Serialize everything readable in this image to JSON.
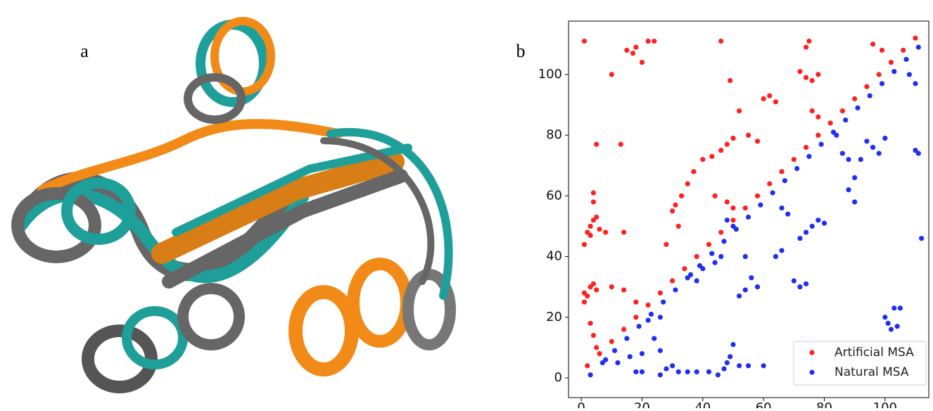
{
  "panel_labels": [
    "a",
    "b"
  ],
  "chart_data": {
    "type": "scatter",
    "xlim": [
      -4.2,
      114.4
    ],
    "ylim": [
      -6.5,
      117.6
    ],
    "xticks": [
      0,
      20,
      40,
      60,
      80,
      100
    ],
    "yticks": [
      0,
      20,
      40,
      60,
      80,
      100
    ],
    "grid": false,
    "legend": "lower right",
    "series": [
      {
        "name": "Artificial MSA",
        "color": "#ff2020",
        "x": [
          1,
          10,
          13,
          5,
          2,
          3,
          1,
          3,
          4,
          5,
          6,
          1,
          2,
          3,
          4,
          5,
          1,
          3,
          4,
          5,
          8,
          14,
          4,
          4,
          10,
          14,
          18,
          15,
          17,
          18,
          20,
          22,
          24,
          30,
          31,
          33,
          35,
          37,
          40,
          43,
          46,
          48,
          50,
          52,
          46,
          49,
          28,
          32,
          44,
          48,
          50,
          60,
          62,
          64,
          55,
          58,
          72,
          74,
          76,
          78,
          74,
          75,
          96,
          99,
          76,
          78,
          2,
          6,
          10,
          14,
          18,
          22,
          26,
          30,
          34,
          38,
          42,
          46,
          50,
          54,
          58,
          62,
          66,
          70,
          74,
          78,
          82,
          86,
          90,
          94,
          98,
          102,
          106,
          110
        ],
        "y": [
          111,
          100,
          77,
          77,
          48,
          47,
          44,
          50,
          52,
          53,
          49,
          28,
          27,
          30,
          31,
          29,
          25,
          18,
          14,
          10,
          48,
          48,
          61,
          58,
          30,
          29,
          25,
          108,
          107,
          109,
          104,
          111,
          111,
          55,
          57,
          60,
          64,
          68,
          72,
          73,
          75,
          77,
          79,
          88,
          111,
          98,
          44,
          50,
          60,
          58,
          56,
          92,
          93,
          91,
          80,
          78,
          101,
          99,
          98,
          100,
          109,
          111,
          110,
          108,
          88,
          86,
          4,
          8,
          12,
          16,
          20,
          24,
          28,
          32,
          36,
          40,
          44,
          48,
          52,
          56,
          60,
          64,
          68,
          72,
          76,
          80,
          84,
          88,
          92,
          96,
          100,
          104,
          108,
          112
        ]
      },
      {
        "name": "Natural MSA",
        "color": "#1f2ef0",
        "x": [
          110,
          111,
          112,
          100,
          101,
          102,
          103,
          105,
          104,
          94,
          96,
          98,
          100,
          92,
          90,
          88,
          90,
          76,
          78,
          74,
          72,
          80,
          70,
          72,
          74,
          58,
          56,
          54,
          52,
          54,
          50,
          48,
          30,
          28,
          26,
          32,
          35,
          38,
          42,
          45,
          47,
          48,
          49,
          50,
          55,
          60,
          52,
          22,
          24,
          26,
          20,
          16,
          12,
          8,
          18,
          20,
          26,
          36,
          38,
          40,
          44,
          46,
          66,
          68,
          86,
          88,
          108,
          110,
          84,
          64,
          66,
          3,
          7,
          11,
          15,
          19,
          23,
          27,
          31,
          35,
          39,
          43,
          47,
          51,
          55,
          59,
          63,
          67,
          71,
          75,
          79,
          83,
          87,
          91,
          95,
          99,
          103,
          107,
          111
        ],
        "y": [
          75,
          74,
          46,
          20,
          18,
          16,
          23,
          23,
          17,
          78,
          76,
          74,
          79,
          72,
          66,
          62,
          58,
          50,
          52,
          48,
          46,
          51,
          32,
          30,
          31,
          30,
          33,
          29,
          27,
          40,
          50,
          52,
          4,
          3,
          1,
          2,
          2,
          2,
          2,
          1,
          3,
          5,
          7,
          11,
          4,
          4,
          4,
          19,
          13,
          9,
          8,
          7,
          5,
          6,
          2,
          2,
          20,
          34,
          32,
          36,
          38,
          40,
          56,
          54,
          74,
          72,
          100,
          97,
          80,
          40,
          42,
          1,
          5,
          9,
          13,
          17,
          21,
          25,
          29,
          33,
          37,
          41,
          45,
          49,
          53,
          57,
          61,
          65,
          69,
          73,
          77,
          81,
          85,
          89,
          93,
          97,
          101,
          105,
          109
        ]
      }
    ]
  }
}
